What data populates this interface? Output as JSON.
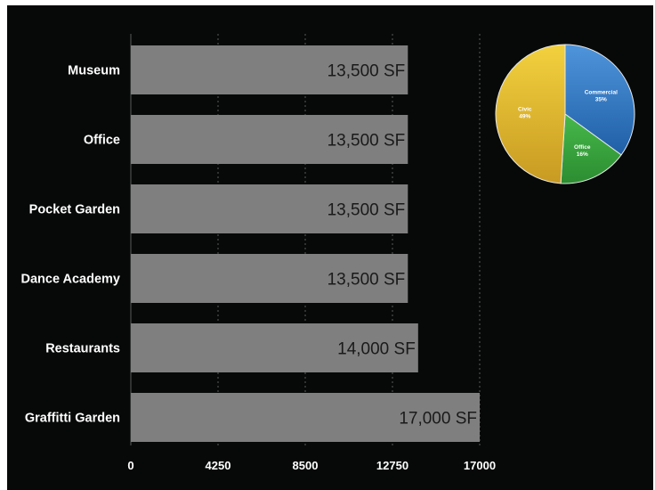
{
  "chart_data": [
    {
      "type": "bar",
      "orientation": "horizontal",
      "categories": [
        "Museum",
        "Office",
        "Pocket Garden",
        "Dance Academy",
        "Restaurants",
        "Graffitti Garden"
      ],
      "values": [
        13500,
        13500,
        13500,
        13500,
        14000,
        17000
      ],
      "data_labels": [
        "13,500 SF",
        "13,500 SF",
        "13,500 SF",
        "13,500 SF",
        "14,000 SF",
        "17,000 SF"
      ],
      "x_ticks": [
        "0",
        "4250",
        "8500",
        "12750",
        "17000"
      ],
      "xlim": [
        0,
        17000
      ],
      "grid": "vertical dashed",
      "colors": {
        "bar": "#7f7f7f",
        "label": "#1a1a1a",
        "text": "#ffffff",
        "background": "#070909"
      }
    },
    {
      "type": "pie",
      "slices": [
        {
          "label": "Commercial",
          "value": 35,
          "value_label": "35%",
          "color": "#2f79c4"
        },
        {
          "label": "Office",
          "value": 16,
          "value_label": "16%",
          "color": "#35a63a"
        },
        {
          "label": "Civic",
          "value": 49,
          "value_label": "49%",
          "color": "#e3b52a"
        }
      ]
    }
  ]
}
